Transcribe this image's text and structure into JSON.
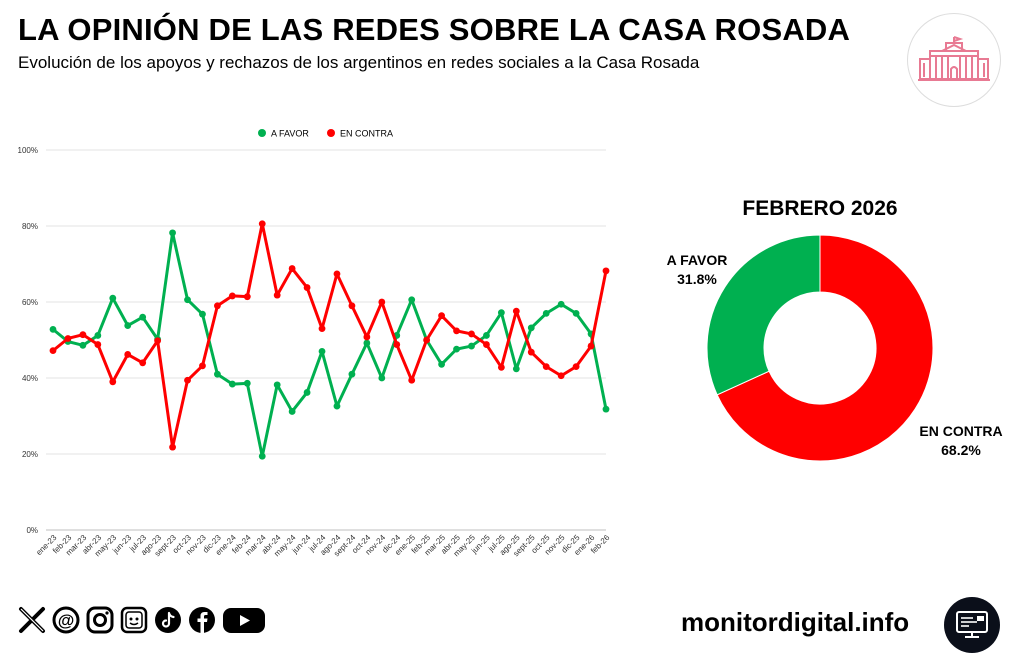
{
  "header": {
    "title": "LA OPINIÓN DE LAS REDES SOBRE LA CASA ROSADA",
    "subtitle": "Evolución de los apoyos y rechazos de los argentinos en redes sociales a la Casa Rosada"
  },
  "colors": {
    "favor": "#00b050",
    "contra": "#ff0000"
  },
  "chart_data": [
    {
      "type": "line",
      "title": "",
      "legend_position": "top-center",
      "categories": [
        "ene-23",
        "feb-23",
        "mar-23",
        "abr-23",
        "may-23",
        "jun-23",
        "jul-23",
        "ago-23",
        "sept-23",
        "oct-23",
        "nov-23",
        "dic-23",
        "ene-24",
        "feb-24",
        "mar-24",
        "abr-24",
        "may-24",
        "jun-24",
        "jul-24",
        "ago-24",
        "sept-24",
        "oct-24",
        "nov-24",
        "dic-24",
        "ene-25",
        "feb-25",
        "mar-25",
        "abr-25",
        "may-25",
        "jun-25",
        "jul-25",
        "ago-25",
        "sept-25",
        "oct-25",
        "nov-25",
        "dic-25",
        "ene-26",
        "feb-26"
      ],
      "series": [
        {
          "name": "A FAVOR",
          "color": "#00b050",
          "values": [
            52.8,
            49.6,
            48.6,
            51.2,
            61.0,
            53.8,
            56.0,
            50.2,
            78.2,
            60.6,
            56.8,
            41.0,
            38.4,
            38.6,
            19.4,
            38.2,
            31.2,
            36.2,
            47.0,
            32.6,
            41.0,
            49.2,
            40.0,
            51.2,
            60.6,
            50.0,
            43.6,
            47.6,
            48.4,
            51.2,
            57.2,
            42.4,
            53.2,
            57.0,
            59.4,
            57.0,
            51.6,
            31.8
          ]
        },
        {
          "name": "EN CONTRA",
          "color": "#ff0000",
          "values": [
            47.2,
            50.4,
            51.4,
            48.8,
            39.0,
            46.2,
            44.0,
            49.8,
            21.8,
            39.4,
            43.2,
            59.0,
            61.6,
            61.4,
            80.6,
            61.8,
            68.8,
            63.8,
            53.0,
            67.4,
            59.0,
            50.8,
            60.0,
            48.8,
            39.4,
            50.0,
            56.4,
            52.4,
            51.6,
            48.8,
            42.8,
            57.6,
            46.8,
            43.0,
            40.6,
            43.0,
            48.4,
            68.2
          ]
        }
      ],
      "y_ticks": [
        "0%",
        "20%",
        "40%",
        "60%",
        "80%",
        "100%"
      ],
      "ylim": [
        0,
        100
      ],
      "grid": true
    },
    {
      "type": "pie",
      "subtype": "donut",
      "title": "FEBRERO 2026",
      "slices": [
        {
          "label": "A FAVOR",
          "value": 31.8,
          "display": "31.8%",
          "color": "#00b050"
        },
        {
          "label": "EN CONTRA",
          "value": 68.2,
          "display": "68.2%",
          "color": "#ff0000"
        }
      ]
    }
  ],
  "footer": {
    "website": "monitordigital.info",
    "social_icons": [
      "x-icon",
      "threads-icon",
      "instagram-icon",
      "vine-icon",
      "tiktok-icon",
      "facebook-icon",
      "youtube-icon"
    ]
  }
}
